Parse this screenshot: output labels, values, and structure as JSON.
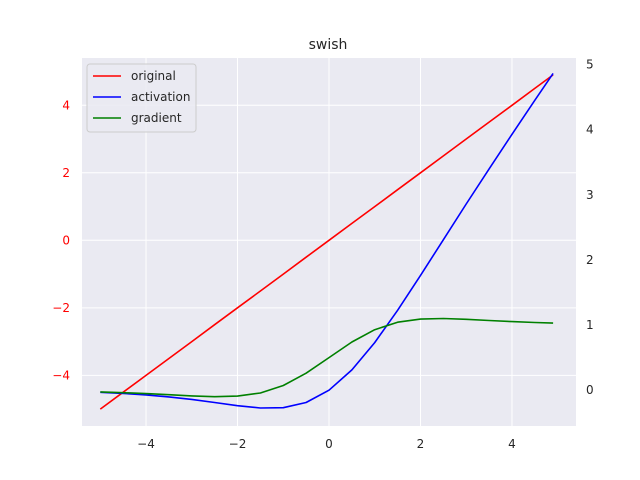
{
  "chart_data": {
    "type": "line",
    "title": "swish",
    "xlabel": "",
    "ylabel": "",
    "xlim": [
      -5.4,
      5.4
    ],
    "ylim_left": [
      -5.5,
      5.4
    ],
    "ylim_right": [
      -0.55,
      5.1
    ],
    "x_ticks": [
      -4,
      -2,
      0,
      2,
      4
    ],
    "x_tick_labels": [
      "−4",
      "−2",
      "0",
      "2",
      "4"
    ],
    "y_left_ticks": [
      -4,
      -2,
      0,
      2,
      4
    ],
    "y_left_tick_labels": [
      "−4",
      "−2",
      "0",
      "2",
      "4"
    ],
    "y_right_ticks": [
      0,
      1,
      2,
      3,
      4,
      5
    ],
    "y_right_tick_labels": [
      "0",
      "1",
      "2",
      "3",
      "4",
      "5"
    ],
    "grid": true,
    "legend_position": "top-left",
    "x": [
      -5.0,
      -4.5,
      -4.0,
      -3.5,
      -3.0,
      -2.5,
      -2.0,
      -1.5,
      -1.0,
      -0.5,
      0.0,
      0.5,
      1.0,
      1.5,
      2.0,
      2.5,
      3.0,
      3.5,
      4.0,
      4.5,
      4.9
    ],
    "series": [
      {
        "name": "original",
        "color": "#ff0000",
        "axis": "left",
        "values": [
          -5.0,
          -4.5,
          -4.0,
          -3.5,
          -3.0,
          -2.5,
          -2.0,
          -1.5,
          -1.0,
          -0.5,
          0.0,
          0.5,
          1.0,
          1.5,
          2.0,
          2.5,
          3.0,
          3.5,
          4.0,
          4.5,
          4.9
        ]
      },
      {
        "name": "activation",
        "color": "#0000ff",
        "axis": "right",
        "values": [
          -0.033,
          -0.05,
          -0.072,
          -0.103,
          -0.142,
          -0.189,
          -0.238,
          -0.274,
          -0.269,
          -0.189,
          0.0,
          0.311,
          0.731,
          1.227,
          1.762,
          2.31,
          2.858,
          3.398,
          3.928,
          4.45,
          4.863
        ]
      },
      {
        "name": "gradient",
        "color": "#008000",
        "axis": "right",
        "values": [
          -0.026,
          -0.039,
          -0.053,
          -0.07,
          -0.088,
          -0.1,
          -0.091,
          -0.043,
          0.072,
          0.26,
          0.5,
          0.74,
          0.928,
          1.043,
          1.091,
          1.1,
          1.088,
          1.07,
          1.053,
          1.039,
          1.03
        ]
      }
    ]
  },
  "colors": {
    "plot_background": "#eaeaf2",
    "grid": "#ffffff",
    "left_tick_color": "#ff0000",
    "right_tick_color": "#262626"
  }
}
